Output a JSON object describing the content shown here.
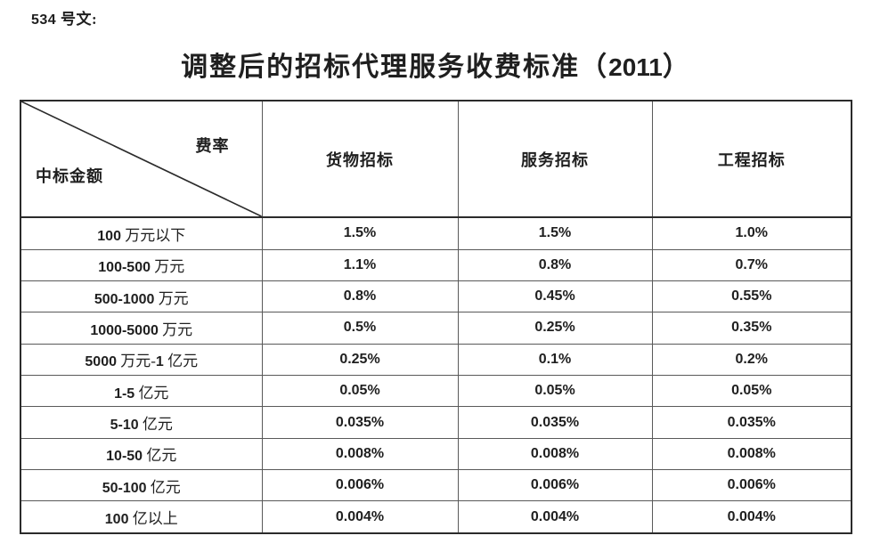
{
  "page": {
    "doc_label": "534 号文:",
    "title": "调整后的招标代理服务收费标准（2011）"
  },
  "table": {
    "corner_top_right": "费率",
    "corner_bottom_left": "中标金额",
    "columns": [
      "货物招标",
      "服务招标",
      "工程招标"
    ],
    "rows": [
      {
        "label": "100 万元以下",
        "values": [
          "1.5%",
          "1.5%",
          "1.0%"
        ]
      },
      {
        "label": "100-500 万元",
        "values": [
          "1.1%",
          "0.8%",
          "0.7%"
        ]
      },
      {
        "label": "500-1000 万元",
        "values": [
          "0.8%",
          "0.45%",
          "0.55%"
        ]
      },
      {
        "label": "1000-5000 万元",
        "values": [
          "0.5%",
          "0.25%",
          "0.35%"
        ]
      },
      {
        "label": "5000 万元-1 亿元",
        "values": [
          "0.25%",
          "0.1%",
          "0.2%"
        ]
      },
      {
        "label": "1-5 亿元",
        "values": [
          "0.05%",
          "0.05%",
          "0.05%"
        ]
      },
      {
        "label": "5-10 亿元",
        "values": [
          "0.035%",
          "0.035%",
          "0.035%"
        ]
      },
      {
        "label": "10-50 亿元",
        "values": [
          "0.008%",
          "0.008%",
          "0.008%"
        ]
      },
      {
        "label": "50-100 亿元",
        "values": [
          "0.006%",
          "0.006%",
          "0.006%"
        ]
      },
      {
        "label": "100 亿以上",
        "values": [
          "0.004%",
          "0.004%",
          "0.004%"
        ]
      }
    ]
  },
  "colors": {
    "text": "#1f1f1f",
    "border_outer": "#2b2b2b",
    "border_inner": "#595959",
    "background": "#ffffff"
  }
}
